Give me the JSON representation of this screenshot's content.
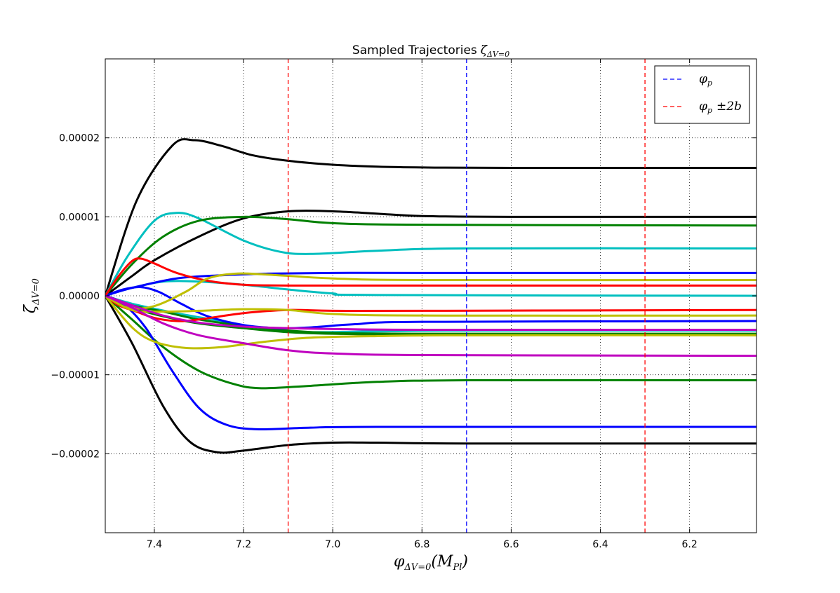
{
  "chart_data": {
    "type": "line",
    "title": "Sampled Trajectories",
    "title_symbol": "ζ",
    "title_subscript": "ΔV=0",
    "xlabel_symbol": "φ",
    "xlabel_subscript": "ΔV=0",
    "xlabel_rest": "(M",
    "xlabel_rest_sub": "Pl",
    "xlabel_close": ")",
    "ylabel_symbol": "ζ",
    "ylabel_subscript": "ΔV=0",
    "xlim": [
      7.51,
      6.05
    ],
    "ylim": [
      -3e-05,
      3e-05
    ],
    "x_ticks": [
      7.4,
      7.2,
      7.0,
      6.8,
      6.6,
      6.4,
      6.2
    ],
    "x_tick_labels": [
      "7.4",
      "7.2",
      "7.0",
      "6.8",
      "6.6",
      "6.4",
      "6.2"
    ],
    "y_ticks": [
      2e-05,
      1e-05,
      0.0,
      -1e-05,
      -2e-05
    ],
    "y_tick_labels": [
      "0.00002",
      "0.00001",
      "0.00000",
      "−0.00001",
      "−0.00002"
    ],
    "grid": true,
    "legend_position": "top-right",
    "vlines": [
      {
        "x": 6.7,
        "color": "#0000ff",
        "label_symbol": "φ",
        "label_sub": "p",
        "label_rest": ""
      },
      {
        "x": 7.1,
        "color": "#ff0000",
        "label_symbol": "φ",
        "label_sub": "p",
        "label_rest": "±2b"
      },
      {
        "x": 6.3,
        "color": "#ff0000"
      }
    ],
    "series": [
      {
        "color": "#000000",
        "points": [
          [
            7.51,
            0
          ],
          [
            7.44,
            1.2e-05
          ],
          [
            7.36,
            1.9e-05
          ],
          [
            7.31,
            1.97e-05
          ],
          [
            7.25,
            1.9e-05
          ],
          [
            7.18,
            1.78e-05
          ],
          [
            7.1,
            1.71e-05
          ],
          [
            7.0,
            1.66e-05
          ],
          [
            6.9,
            1.635e-05
          ],
          [
            6.8,
            1.625e-05
          ],
          [
            6.6,
            1.62e-05
          ],
          [
            6.05,
            1.62e-05
          ]
        ]
      },
      {
        "color": "#000000",
        "points": [
          [
            7.51,
            0
          ],
          [
            7.45,
            2.5e-06
          ],
          [
            7.4,
            4.5e-06
          ],
          [
            7.3,
            7.5e-06
          ],
          [
            7.2,
            9.8e-06
          ],
          [
            7.1,
            1.07e-05
          ],
          [
            7.0,
            1.07e-05
          ],
          [
            6.9,
            1.04e-05
          ],
          [
            6.8,
            1.01e-05
          ],
          [
            6.6,
            1e-05
          ],
          [
            6.05,
            1e-05
          ]
        ]
      },
      {
        "color": "#000000",
        "points": [
          [
            7.51,
            0
          ],
          [
            7.45,
            -6e-06
          ],
          [
            7.38,
            -1.4e-05
          ],
          [
            7.32,
            -1.85e-05
          ],
          [
            7.26,
            -1.98e-05
          ],
          [
            7.2,
            -1.96e-05
          ],
          [
            7.1,
            -1.89e-05
          ],
          [
            7.0,
            -1.86e-05
          ],
          [
            6.9,
            -1.86e-05
          ],
          [
            6.7,
            -1.87e-05
          ],
          [
            6.05,
            -1.87e-05
          ]
        ]
      },
      {
        "color": "#00bfbf",
        "points": [
          [
            7.51,
            0
          ],
          [
            7.46,
            5e-06
          ],
          [
            7.4,
            9.5e-06
          ],
          [
            7.35,
            1.05e-05
          ],
          [
            7.3,
            9.8e-06
          ],
          [
            7.2,
            7e-06
          ],
          [
            7.12,
            5.6e-06
          ],
          [
            7.05,
            5.3e-06
          ],
          [
            6.9,
            5.7e-06
          ],
          [
            6.7,
            6e-06
          ],
          [
            6.05,
            6e-06
          ]
        ]
      },
      {
        "color": "#00bfbf",
        "points": [
          [
            7.51,
            0
          ],
          [
            7.45,
            1e-06
          ],
          [
            7.38,
            1.8e-06
          ],
          [
            7.3,
            1.8e-06
          ],
          [
            7.2,
            1.4e-06
          ],
          [
            7.1,
            8e-07
          ],
          [
            7.0,
            3e-07
          ],
          [
            6.9,
            1e-07
          ],
          [
            6.05,
            0
          ]
        ]
      },
      {
        "color": "#00bfbf",
        "points": [
          [
            7.51,
            0
          ],
          [
            7.45,
            -1e-06
          ],
          [
            7.35,
            -2.2e-06
          ],
          [
            7.25,
            -3.2e-06
          ],
          [
            7.15,
            -4.2e-06
          ],
          [
            7.05,
            -4.6e-06
          ],
          [
            6.9,
            -4.5e-06
          ],
          [
            6.7,
            -4.4e-06
          ],
          [
            6.05,
            -4.4e-06
          ]
        ]
      },
      {
        "color": "#008000",
        "points": [
          [
            7.51,
            0
          ],
          [
            7.45,
            4e-06
          ],
          [
            7.38,
            7.5e-06
          ],
          [
            7.3,
            9.5e-06
          ],
          [
            7.2,
            1e-05
          ],
          [
            7.1,
            9.7e-06
          ],
          [
            7.0,
            9.2e-06
          ],
          [
            6.8,
            9e-06
          ],
          [
            6.05,
            8.9e-06
          ]
        ]
      },
      {
        "color": "#008000",
        "points": [
          [
            7.51,
            0
          ],
          [
            7.45,
            -3e-06
          ],
          [
            7.38,
            -6.5e-06
          ],
          [
            7.3,
            -9.5e-06
          ],
          [
            7.22,
            -1.12e-05
          ],
          [
            7.16,
            -1.17e-05
          ],
          [
            7.05,
            -1.14e-05
          ],
          [
            6.9,
            -1.09e-05
          ],
          [
            6.7,
            -1.07e-05
          ],
          [
            6.05,
            -1.07e-05
          ]
        ]
      },
      {
        "color": "#008000",
        "points": [
          [
            7.51,
            0
          ],
          [
            7.45,
            -1.2e-06
          ],
          [
            7.38,
            -2e-06
          ],
          [
            7.3,
            -3e-06
          ],
          [
            7.2,
            -3.8e-06
          ],
          [
            7.1,
            -4.4e-06
          ],
          [
            7.0,
            -4.7e-06
          ],
          [
            6.8,
            -4.8e-06
          ],
          [
            6.05,
            -4.8e-06
          ]
        ]
      },
      {
        "color": "#008000",
        "points": [
          [
            7.51,
            0
          ],
          [
            7.45,
            -1.5e-06
          ],
          [
            7.38,
            -2.6e-06
          ],
          [
            7.3,
            -3.5e-06
          ],
          [
            7.2,
            -4.1e-06
          ],
          [
            7.1,
            -4.6e-06
          ],
          [
            7.0,
            -4.8e-06
          ],
          [
            6.8,
            -4.9e-06
          ],
          [
            6.05,
            -4.9e-06
          ]
        ]
      },
      {
        "color": "#0000ff",
        "points": [
          [
            7.51,
            0
          ],
          [
            7.47,
            -1e-06
          ],
          [
            7.42,
            -4e-06
          ],
          [
            7.36,
            -9.5e-06
          ],
          [
            7.3,
            -1.42e-05
          ],
          [
            7.24,
            -1.63e-05
          ],
          [
            7.17,
            -1.69e-05
          ],
          [
            7.05,
            -1.67e-05
          ],
          [
            6.9,
            -1.66e-05
          ],
          [
            6.05,
            -1.66e-05
          ]
        ]
      },
      {
        "color": "#0000ff",
        "points": [
          [
            7.51,
            0
          ],
          [
            7.45,
            1e-06
          ],
          [
            7.35,
            2.2e-06
          ],
          [
            7.25,
            2.6e-06
          ],
          [
            7.15,
            2.8e-06
          ],
          [
            7.0,
            2.9e-06
          ],
          [
            6.8,
            2.9e-06
          ],
          [
            6.05,
            2.9e-06
          ]
        ]
      },
      {
        "color": "#0000ff",
        "points": [
          [
            7.51,
            0
          ],
          [
            7.47,
            8e-07
          ],
          [
            7.43,
            1.1e-06
          ],
          [
            7.39,
            5e-07
          ],
          [
            7.34,
            -1e-06
          ],
          [
            7.28,
            -2.6e-06
          ],
          [
            7.2,
            -3.7e-06
          ],
          [
            7.12,
            -4.1e-06
          ],
          [
            7.05,
            -4e-06
          ],
          [
            6.95,
            -3.6e-06
          ],
          [
            6.8,
            -3.3e-06
          ],
          [
            6.05,
            -3.2e-06
          ]
        ]
      },
      {
        "color": "#ff0000",
        "points": [
          [
            7.51,
            0
          ],
          [
            7.48,
            2.5e-06
          ],
          [
            7.45,
            4.4e-06
          ],
          [
            7.43,
            4.7e-06
          ],
          [
            7.4,
            4.1e-06
          ],
          [
            7.35,
            2.9e-06
          ],
          [
            7.28,
            1.9e-06
          ],
          [
            7.2,
            1.4e-06
          ],
          [
            7.1,
            1.3e-06
          ],
          [
            6.9,
            1.3e-06
          ],
          [
            6.05,
            1.3e-06
          ]
        ]
      },
      {
        "color": "#ff0000",
        "points": [
          [
            7.51,
            0
          ],
          [
            7.48,
            -1.2e-06
          ],
          [
            7.44,
            -2e-06
          ],
          [
            7.4,
            -2.8e-06
          ],
          [
            7.35,
            -3.2e-06
          ],
          [
            7.3,
            -3e-06
          ],
          [
            7.2,
            -2.2e-06
          ],
          [
            7.1,
            -1.8e-06
          ],
          [
            7.0,
            -1.9e-06
          ],
          [
            6.8,
            -1.9e-06
          ],
          [
            6.05,
            -1.8e-06
          ]
        ]
      },
      {
        "color": "#bfbf00",
        "points": [
          [
            7.51,
            0
          ],
          [
            7.45,
            -4e-06
          ],
          [
            7.4,
            -5.8e-06
          ],
          [
            7.33,
            -6.6e-06
          ],
          [
            7.25,
            -6.5e-06
          ],
          [
            7.15,
            -5.8e-06
          ],
          [
            7.05,
            -5.3e-06
          ],
          [
            6.9,
            -5.1e-06
          ],
          [
            6.7,
            -5e-06
          ],
          [
            6.05,
            -5e-06
          ]
        ]
      },
      {
        "color": "#bfbf00",
        "points": [
          [
            7.51,
            0
          ],
          [
            7.46,
            -1.5e-06
          ],
          [
            7.4,
            -1.3e-06
          ],
          [
            7.33,
            5e-07
          ],
          [
            7.28,
            2.2e-06
          ],
          [
            7.22,
            2.8e-06
          ],
          [
            7.15,
            2.7e-06
          ],
          [
            7.0,
            2.2e-06
          ],
          [
            6.8,
            2e-06
          ],
          [
            6.05,
            2e-06
          ]
        ]
      },
      {
        "color": "#bfbf00",
        "points": [
          [
            7.51,
            0
          ],
          [
            7.45,
            -1.8e-06
          ],
          [
            7.38,
            -2e-06
          ],
          [
            7.3,
            -1.9e-06
          ],
          [
            7.2,
            -1.7e-06
          ],
          [
            7.1,
            -1.8e-06
          ],
          [
            7.0,
            -2.3e-06
          ],
          [
            6.8,
            -2.5e-06
          ],
          [
            6.05,
            -2.5e-06
          ]
        ]
      },
      {
        "color": "#bf00bf",
        "points": [
          [
            7.51,
            0
          ],
          [
            7.45,
            -1.5e-06
          ],
          [
            7.38,
            -3.5e-06
          ],
          [
            7.3,
            -5e-06
          ],
          [
            7.2,
            -6e-06
          ],
          [
            7.1,
            -6.9e-06
          ],
          [
            7.0,
            -7.3e-06
          ],
          [
            6.8,
            -7.5e-06
          ],
          [
            6.05,
            -7.6e-06
          ]
        ]
      },
      {
        "color": "#bf00bf",
        "points": [
          [
            7.51,
            0
          ],
          [
            7.45,
            -1.2e-06
          ],
          [
            7.38,
            -2.5e-06
          ],
          [
            7.3,
            -3.4e-06
          ],
          [
            7.2,
            -3.9e-06
          ],
          [
            7.1,
            -4.1e-06
          ],
          [
            7.0,
            -4.2e-06
          ],
          [
            6.8,
            -4.3e-06
          ],
          [
            6.05,
            -4.3e-06
          ]
        ]
      }
    ]
  }
}
